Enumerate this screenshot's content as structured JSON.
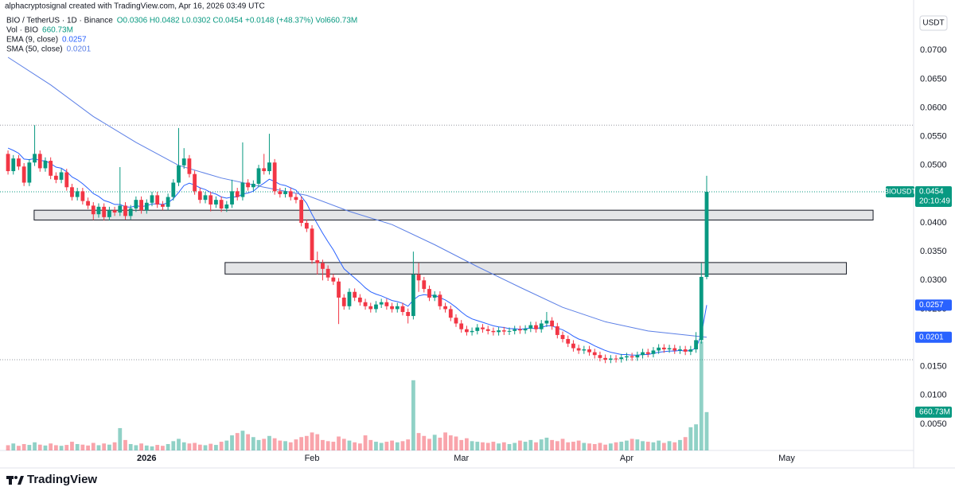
{
  "header": {
    "title": "alphacryptosignal created with TradingView.com, Apr 16, 2026 03:49 UTC",
    "brand": "TradingView"
  },
  "chart_data": {
    "type": "candlestick",
    "symbol": "BIO / TetherUS · 1D · Binance",
    "ohlc_text": "O0.0306 H0.0482 L0.0302 C0.0454 +0.0148 (+48.37%) Vol660.73M",
    "axis_currency": "USDT",
    "up_color": "#089981",
    "down_color": "#f23645",
    "xlim": [
      -1.5,
      169.8
    ],
    "xticks": [
      {
        "value": 26,
        "label": "2026"
      },
      {
        "value": 57,
        "label": "Feb"
      },
      {
        "value": 85,
        "label": "Mar"
      },
      {
        "value": 116,
        "label": "Apr"
      },
      {
        "value": 146,
        "label": "May"
      }
    ],
    "ylim": [
      0,
      0.076
    ],
    "yticks": [
      {
        "value": 0.005,
        "label": "0.0050"
      },
      {
        "value": 0.01,
        "label": "0.0100"
      },
      {
        "value": 0.015,
        "label": "0.0150"
      },
      {
        "value": 0.025,
        "label": "0.0250"
      },
      {
        "value": 0.03,
        "label": "0.0300"
      },
      {
        "value": 0.035,
        "label": "0.0350"
      },
      {
        "value": 0.04,
        "label": "0.0400"
      },
      {
        "value": 0.05,
        "label": "0.0500"
      },
      {
        "value": 0.055,
        "label": "0.0550"
      },
      {
        "value": 0.06,
        "label": "0.0600"
      },
      {
        "value": 0.065,
        "label": "0.0650"
      },
      {
        "value": 0.07,
        "label": "0.0700"
      }
    ],
    "open": [
      0.052,
      0.049,
      0.0512,
      0.0498,
      0.047,
      0.0505,
      0.052,
      0.0495,
      0.0508,
      0.0482,
      0.0475,
      0.0488,
      0.0462,
      0.0445,
      0.0455,
      0.0438,
      0.043,
      0.0415,
      0.0428,
      0.041,
      0.0422,
      0.0418,
      0.043,
      0.0412,
      0.0425,
      0.044,
      0.0422,
      0.0435,
      0.0448,
      0.0432,
      0.0428,
      0.0445,
      0.047,
      0.05,
      0.0512,
      0.0485,
      0.0455,
      0.044,
      0.0448,
      0.0432,
      0.044,
      0.0425,
      0.0432,
      0.0455,
      0.0445,
      0.047,
      0.0462,
      0.0468,
      0.0495,
      0.049,
      0.0505,
      0.0455,
      0.045,
      0.0455,
      0.0445,
      0.044,
      0.04,
      0.039,
      0.0335,
      0.033,
      0.032,
      0.0305,
      0.0298,
      0.027,
      0.0255,
      0.028,
      0.027,
      0.0262,
      0.0255,
      0.025,
      0.0258,
      0.0262,
      0.0255,
      0.025,
      0.0255,
      0.0245,
      0.0238,
      0.031,
      0.03,
      0.0285,
      0.027,
      0.0275,
      0.0255,
      0.025,
      0.0235,
      0.0225,
      0.0215,
      0.021,
      0.0212,
      0.0218,
      0.0215,
      0.0212,
      0.021,
      0.0213,
      0.0211,
      0.0212,
      0.0215,
      0.0213,
      0.0216,
      0.0222,
      0.0215,
      0.0225,
      0.023,
      0.022,
      0.0205,
      0.0198,
      0.019,
      0.0182,
      0.0178,
      0.018,
      0.0175,
      0.017,
      0.0165,
      0.0162,
      0.0164,
      0.0163,
      0.0166,
      0.0168,
      0.0166,
      0.017,
      0.0175,
      0.0172,
      0.0178,
      0.0183,
      0.018,
      0.0182,
      0.0178,
      0.018,
      0.0176,
      0.018,
      0.0196,
      0.0306
    ],
    "high": [
      0.0526,
      0.0518,
      0.0518,
      0.0504,
      0.0511,
      0.057,
      0.0526,
      0.0514,
      0.0514,
      0.0488,
      0.0494,
      0.0494,
      0.0468,
      0.0461,
      0.0461,
      0.0444,
      0.0436,
      0.0434,
      0.0434,
      0.0428,
      0.0428,
      0.0497,
      0.0436,
      0.0431,
      0.0446,
      0.0446,
      0.0441,
      0.0454,
      0.0454,
      0.0438,
      0.0451,
      0.0476,
      0.0565,
      0.053,
      0.0518,
      0.0491,
      0.0461,
      0.0454,
      0.0454,
      0.0446,
      0.0446,
      0.0438,
      0.0475,
      0.0461,
      0.054,
      0.0476,
      0.0474,
      0.0501,
      0.052,
      0.0555,
      0.0511,
      0.0461,
      0.0461,
      0.0461,
      0.0451,
      0.0446,
      0.0406,
      0.0396,
      0.035,
      0.0336,
      0.0326,
      0.0311,
      0.0304,
      0.0276,
      0.0286,
      0.0286,
      0.0276,
      0.0268,
      0.0261,
      0.0264,
      0.0268,
      0.0268,
      0.0261,
      0.0261,
      0.0261,
      0.0251,
      0.035,
      0.033,
      0.0306,
      0.0291,
      0.0281,
      0.0281,
      0.0261,
      0.0256,
      0.0241,
      0.0231,
      0.0221,
      0.0218,
      0.0224,
      0.0224,
      0.0221,
      0.0218,
      0.0219,
      0.0219,
      0.0218,
      0.0221,
      0.0221,
      0.0222,
      0.0228,
      0.0228,
      0.0231,
      0.0245,
      0.0236,
      0.0226,
      0.0211,
      0.0204,
      0.0196,
      0.0188,
      0.0186,
      0.0186,
      0.0181,
      0.0176,
      0.0171,
      0.017,
      0.017,
      0.0172,
      0.0174,
      0.0174,
      0.0176,
      0.0181,
      0.0181,
      0.0184,
      0.0189,
      0.0189,
      0.0188,
      0.0188,
      0.0186,
      0.0186,
      0.0186,
      0.021,
      0.033,
      0.0482
    ],
    "low": [
      0.0484,
      0.0484,
      0.0492,
      0.0464,
      0.0464,
      0.0499,
      0.0489,
      0.0489,
      0.0476,
      0.0469,
      0.0469,
      0.0456,
      0.0439,
      0.0439,
      0.0432,
      0.0424,
      0.0405,
      0.0409,
      0.0404,
      0.0404,
      0.0412,
      0.0412,
      0.0406,
      0.0406,
      0.0419,
      0.0416,
      0.0416,
      0.0429,
      0.0426,
      0.0422,
      0.0422,
      0.0439,
      0.0464,
      0.0494,
      0.0479,
      0.0449,
      0.0434,
      0.0434,
      0.042,
      0.0426,
      0.0419,
      0.0419,
      0.0426,
      0.0439,
      0.0439,
      0.0456,
      0.0456,
      0.0462,
      0.0484,
      0.0484,
      0.0449,
      0.0444,
      0.0444,
      0.0439,
      0.0434,
      0.0394,
      0.0384,
      0.0329,
      0.031,
      0.03,
      0.0299,
      0.0292,
      0.0224,
      0.0249,
      0.0249,
      0.0264,
      0.0256,
      0.0249,
      0.0244,
      0.0244,
      0.0252,
      0.0249,
      0.0244,
      0.0244,
      0.0239,
      0.0225,
      0.0232,
      0.028,
      0.0279,
      0.0264,
      0.0264,
      0.0249,
      0.0244,
      0.0229,
      0.0219,
      0.0209,
      0.0204,
      0.0204,
      0.0206,
      0.0209,
      0.0206,
      0.0204,
      0.0204,
      0.0205,
      0.0205,
      0.0206,
      0.0207,
      0.0207,
      0.021,
      0.0209,
      0.0209,
      0.0219,
      0.0214,
      0.0199,
      0.0192,
      0.0184,
      0.0176,
      0.0172,
      0.0172,
      0.0169,
      0.0164,
      0.0159,
      0.0156,
      0.0156,
      0.0157,
      0.0157,
      0.016,
      0.016,
      0.016,
      0.0164,
      0.0166,
      0.0166,
      0.0172,
      0.0174,
      0.0174,
      0.0172,
      0.0172,
      0.017,
      0.017,
      0.0174,
      0.019,
      0.0302
    ],
    "close": [
      0.049,
      0.0512,
      0.0498,
      0.047,
      0.0505,
      0.052,
      0.0495,
      0.0508,
      0.0482,
      0.0475,
      0.0488,
      0.0462,
      0.0445,
      0.0455,
      0.0438,
      0.043,
      0.0415,
      0.0428,
      0.041,
      0.0422,
      0.0418,
      0.043,
      0.0412,
      0.0425,
      0.044,
      0.0422,
      0.0435,
      0.0448,
      0.0432,
      0.0428,
      0.0445,
      0.047,
      0.05,
      0.0512,
      0.0485,
      0.0455,
      0.044,
      0.0448,
      0.0432,
      0.044,
      0.0425,
      0.0432,
      0.0455,
      0.0445,
      0.047,
      0.0462,
      0.0468,
      0.0495,
      0.049,
      0.0505,
      0.0455,
      0.045,
      0.0455,
      0.0445,
      0.044,
      0.04,
      0.039,
      0.0335,
      0.033,
      0.032,
      0.0305,
      0.0298,
      0.027,
      0.0255,
      0.028,
      0.027,
      0.0262,
      0.0255,
      0.025,
      0.0258,
      0.0262,
      0.0255,
      0.025,
      0.0255,
      0.0245,
      0.0238,
      0.031,
      0.03,
      0.0285,
      0.027,
      0.0275,
      0.0255,
      0.025,
      0.0235,
      0.0225,
      0.0215,
      0.021,
      0.0212,
      0.0218,
      0.0215,
      0.0212,
      0.021,
      0.0213,
      0.0211,
      0.0212,
      0.0215,
      0.0213,
      0.0216,
      0.0222,
      0.0215,
      0.0225,
      0.023,
      0.022,
      0.0205,
      0.0198,
      0.019,
      0.0182,
      0.0178,
      0.018,
      0.0175,
      0.017,
      0.0165,
      0.0162,
      0.0164,
      0.0163,
      0.0166,
      0.0168,
      0.0166,
      0.017,
      0.0175,
      0.0172,
      0.0178,
      0.0183,
      0.018,
      0.0182,
      0.0178,
      0.018,
      0.0176,
      0.018,
      0.0196,
      0.0306,
      0.0454
    ],
    "price_label": "0.0454",
    "price_tag": "BIOUSDT",
    "countdown": "20:10:49",
    "volume_name": "Vol · BIO",
    "volume_label": "660.73M",
    "volume": [
      90,
      120,
      80,
      110,
      95,
      140,
      100,
      85,
      120,
      90,
      80,
      95,
      150,
      110,
      100,
      85,
      130,
      90,
      120,
      100,
      140,
      385,
      180,
      110,
      90,
      120,
      85,
      70,
      95,
      80,
      110,
      160,
      200,
      140,
      120,
      130,
      100,
      90,
      115,
      95,
      150,
      170,
      260,
      300,
      340,
      280,
      230,
      180,
      200,
      250,
      210,
      170,
      160,
      140,
      190,
      230,
      250,
      310,
      280,
      180,
      160,
      150,
      240,
      200,
      170,
      140,
      120,
      260,
      180,
      150,
      130,
      150,
      170,
      140,
      160,
      190,
      1210,
      300,
      250,
      200,
      270,
      220,
      310,
      260,
      240,
      180,
      210,
      160,
      150,
      140,
      130,
      150,
      120,
      140,
      110,
      130,
      170,
      150,
      180,
      140,
      190,
      220,
      180,
      160,
      200,
      140,
      150,
      170,
      130,
      120,
      110,
      130,
      100,
      120,
      140,
      150,
      170,
      200,
      190,
      160,
      150,
      140,
      170,
      130,
      160,
      140,
      180,
      230,
      400,
      450,
      1880,
      660.73
    ],
    "series": [
      {
        "name": "EMA (9, close)",
        "color": "#2962ff",
        "value_label": "0.0257",
        "values": [
          0.053,
          0.0526,
          0.0521,
          0.0511,
          0.051,
          0.0512,
          0.0508,
          0.0508,
          0.0503,
          0.0497,
          0.0495,
          0.0489,
          0.048,
          0.0475,
          0.0468,
          0.046,
          0.0451,
          0.0446,
          0.0439,
          0.0436,
          0.0432,
          0.0432,
          0.0428,
          0.0427,
          0.043,
          0.0428,
          0.043,
          0.0433,
          0.0433,
          0.0432,
          0.0435,
          0.0442,
          0.0453,
          0.0465,
          0.0469,
          0.0466,
          0.0461,
          0.0458,
          0.0453,
          0.045,
          0.0445,
          0.0443,
          0.0445,
          0.0445,
          0.045,
          0.0452,
          0.0455,
          0.0463,
          0.0469,
          0.0476,
          0.0472,
          0.0467,
          0.0465,
          0.0461,
          0.0457,
          0.0446,
          0.0434,
          0.0415,
          0.0398,
          0.0382,
          0.0367,
          0.0353,
          0.0336,
          0.032,
          0.0312,
          0.0304,
          0.0296,
          0.0287,
          0.028,
          0.0276,
          0.0273,
          0.0269,
          0.0265,
          0.0263,
          0.026,
          0.0255,
          0.0266,
          0.0273,
          0.0275,
          0.0274,
          0.0274,
          0.027,
          0.0266,
          0.026,
          0.0253,
          0.0245,
          0.0238,
          0.0233,
          0.023,
          0.0227,
          0.0224,
          0.0221,
          0.0219,
          0.0218,
          0.0216,
          0.0216,
          0.0215,
          0.0216,
          0.0217,
          0.0216,
          0.0218,
          0.0221,
          0.0221,
          0.0217,
          0.0214,
          0.0209,
          0.0203,
          0.0198,
          0.0195,
          0.0191,
          0.0186,
          0.0182,
          0.0178,
          0.0175,
          0.0173,
          0.0171,
          0.0171,
          0.017,
          0.017,
          0.0171,
          0.0171,
          0.0173,
          0.0175,
          0.0176,
          0.0177,
          0.0177,
          0.0178,
          0.0177,
          0.0178,
          0.0182,
          0.0206,
          0.0257
        ]
      },
      {
        "name": "SMA (50, close)",
        "color": "#5b7fe6",
        "value_label": "0.0201",
        "x": [
          0,
          8,
          16,
          24,
          32,
          40,
          48,
          56,
          64,
          72,
          80,
          88,
          96,
          104,
          112,
          120,
          128,
          131
        ],
        "values": [
          0.0688,
          0.064,
          0.0585,
          0.054,
          0.05,
          0.0478,
          0.0462,
          0.0448,
          0.042,
          0.0397,
          0.0362,
          0.0324,
          0.0288,
          0.0253,
          0.0228,
          0.0212,
          0.0204,
          0.0201
        ]
      }
    ],
    "zones": [
      {
        "x": [
          4.9,
          162.2
        ],
        "range": [
          0.0405,
          0.0422
        ]
      },
      {
        "x": [
          40.7,
          157.2
        ],
        "range": [
          0.0311,
          0.0331
        ]
      }
    ],
    "levels": [
      0.057,
      0.0162
    ]
  }
}
